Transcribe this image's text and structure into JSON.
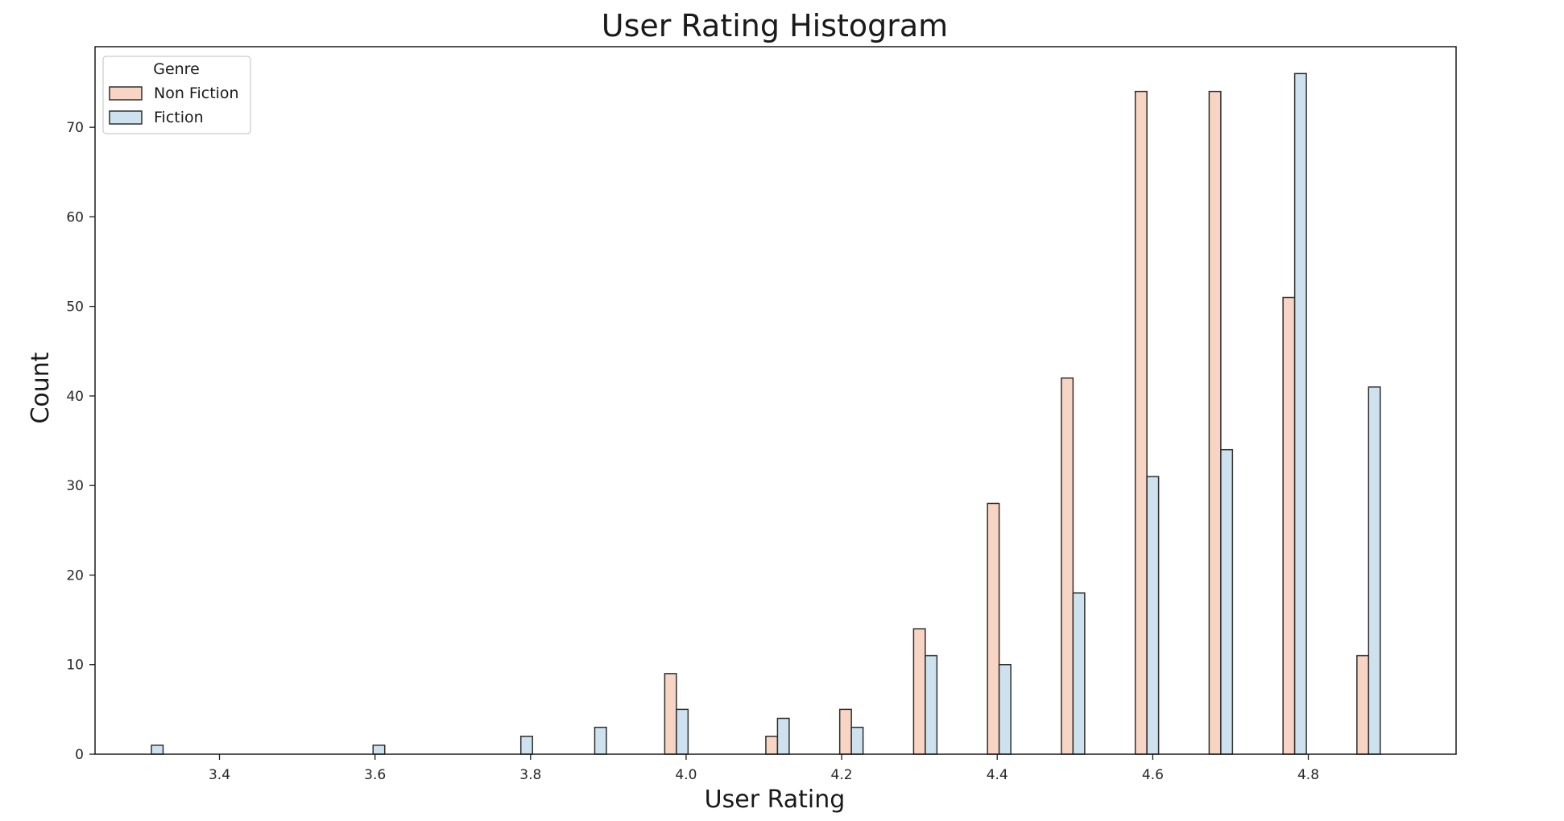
{
  "chart_data": {
    "type": "bar",
    "title": "User Rating Histogram",
    "xlabel": "User Rating",
    "ylabel": "Count",
    "xlim": [
      3.24,
      4.99
    ],
    "ylim": [
      0,
      79
    ],
    "x_ticks": [
      "3.4",
      "3.6",
      "3.8",
      "4.0",
      "4.2",
      "4.4",
      "4.6",
      "4.8"
    ],
    "x_tick_values": [
      3.4,
      3.6,
      3.8,
      4.0,
      4.2,
      4.4,
      4.6,
      4.8
    ],
    "y_ticks": [
      "0",
      "10",
      "20",
      "30",
      "40",
      "50",
      "60",
      "70"
    ],
    "y_tick_values": [
      0,
      10,
      20,
      30,
      40,
      50,
      60,
      70
    ],
    "grid": false,
    "legend": {
      "title": "Genre",
      "position": "top-left"
    },
    "bin_width": 0.015,
    "series": [
      {
        "name": "Non Fiction",
        "color": "#f7d4c3",
        "points": [
          {
            "x": 3.98,
            "y": 9
          },
          {
            "x": 4.11,
            "y": 2
          },
          {
            "x": 4.205,
            "y": 5
          },
          {
            "x": 4.3,
            "y": 14
          },
          {
            "x": 4.395,
            "y": 28
          },
          {
            "x": 4.49,
            "y": 42
          },
          {
            "x": 4.585,
            "y": 74
          },
          {
            "x": 4.68,
            "y": 74
          },
          {
            "x": 4.775,
            "y": 51
          },
          {
            "x": 4.87,
            "y": 11
          }
        ]
      },
      {
        "name": "Fiction",
        "color": "#cde2ee",
        "points": [
          {
            "x": 3.32,
            "y": 1
          },
          {
            "x": 3.605,
            "y": 1
          },
          {
            "x": 3.795,
            "y": 2
          },
          {
            "x": 3.89,
            "y": 3
          },
          {
            "x": 3.995,
            "y": 5
          },
          {
            "x": 4.125,
            "y": 4
          },
          {
            "x": 4.22,
            "y": 3
          },
          {
            "x": 4.315,
            "y": 11
          },
          {
            "x": 4.41,
            "y": 10
          },
          {
            "x": 4.505,
            "y": 18
          },
          {
            "x": 4.6,
            "y": 31
          },
          {
            "x": 4.695,
            "y": 34
          },
          {
            "x": 4.79,
            "y": 76
          },
          {
            "x": 4.885,
            "y": 41
          }
        ]
      }
    ]
  }
}
